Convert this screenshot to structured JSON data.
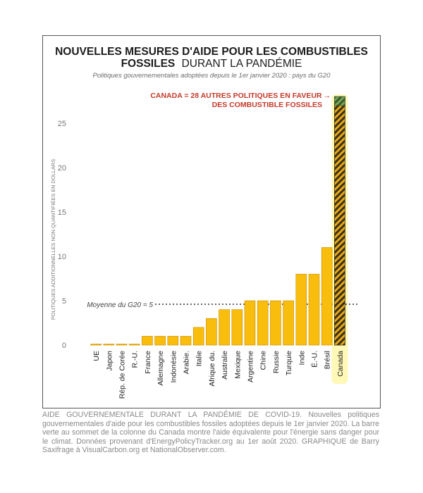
{
  "chart_data": {
    "type": "bar",
    "title_bold": "NOUVELLES MESURES D'AIDE POUR LES COMBUSTIBLES",
    "title_line2_bold": "FOSSILES",
    "title_line2_regular": "DURANT LA PANDÉMIE",
    "subtitle": "Politiques gouvernementales adoptées depuis le 1er janvier 2020 : pays du G20",
    "ylabel": "POLITIQUES ADDITIONNELLES NON QUANTIFIÉES EN DOLLARS",
    "ylim": [
      0,
      28
    ],
    "yticks": [
      0,
      5,
      10,
      15,
      20,
      25
    ],
    "categories": [
      "UE",
      "Japon",
      "Rép. de Corée",
      "R.-U.",
      "France",
      "Allemagne",
      "Indonésie",
      "Arabie.",
      "Italie",
      "Afrique du.",
      "Australie",
      "Mexique",
      "Argentine",
      "Chine",
      "Russie",
      "Turquie",
      "Inde",
      "É.-U.",
      "Brésil",
      "Canada"
    ],
    "values": [
      0.1,
      0.1,
      0.1,
      0.1,
      1,
      1,
      1,
      1,
      2,
      3,
      4,
      4,
      5,
      5,
      5,
      5,
      8,
      8,
      11,
      28
    ],
    "highlight": {
      "category": "Canada",
      "label_line1": "CANADA = 28 AUTRES POLITIQUES EN FAVEUR",
      "label_line2": "DES COMBUSTIBLE FOSSILES",
      "arrow": "→",
      "green_top_value": 1
    },
    "average": {
      "value": 4.6,
      "label": "Moyenne du G20 = 5"
    }
  },
  "colors": {
    "bar": "#f9bd0d",
    "bar_stroke": "#c78c00",
    "canada_stripe_dark": "#3a3017",
    "canada_stripe_light": "#e8a917",
    "canada_green": "#78a85a",
    "canada_glow": "#fff27a",
    "title": "#1c1c1c",
    "annotation": "#c43a2a",
    "axis_text": "#777777"
  },
  "caption": "AIDE GOUVERNEMENTALE DURANT LA PANDÉMIE DE COVID-19. Nouvelles politiques gouvernementales d'aide pour les combustibles fossiles adoptées depuis le 1er janvier 2020. La barre verte au sommet de la colonne du Canada montre l'aide équivalente pour l'énergie sans danger pour le climat. Données provenant d'EnergyPolicyTracker.org au 1er août 2020. GRAPHIQUE de Barry Saxifrage à VisualCarbon.org et NationalObserver.com."
}
